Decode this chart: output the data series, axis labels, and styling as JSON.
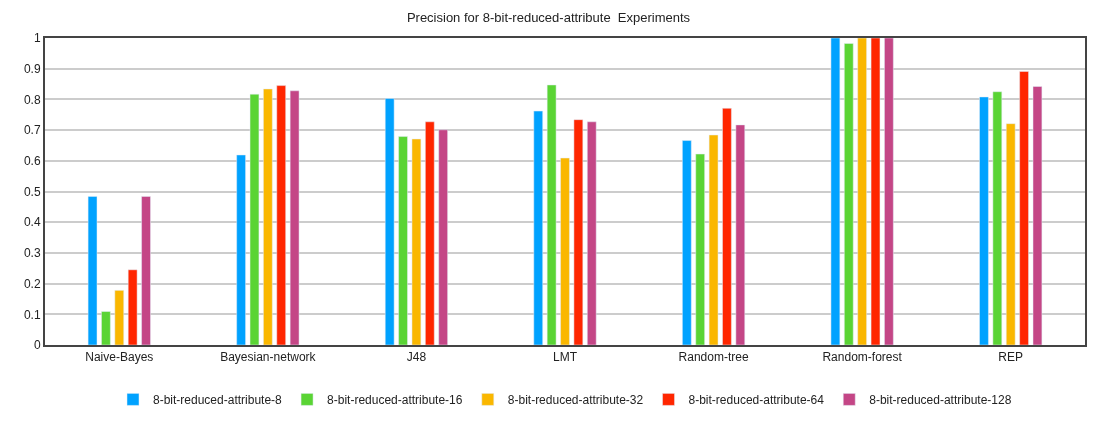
{
  "chart_data": {
    "type": "bar",
    "title": "Precision for 8-bit-reduced-attribute  Experiments",
    "categories": [
      "Naive-Bayes",
      "Bayesian-network",
      "J48",
      "LMT",
      "Random-tree",
      "Random-forest",
      "REP"
    ],
    "series": [
      {
        "name": "8-bit-reduced-attribute-8",
        "color": "#00a2ff",
        "values": [
          0.484,
          0.619,
          0.803,
          0.762,
          0.666,
          1.0,
          0.808
        ]
      },
      {
        "name": "8-bit-reduced-attribute-16",
        "color": "#5ad434",
        "values": [
          0.109,
          0.817,
          0.679,
          0.847,
          0.622,
          0.982,
          0.825
        ]
      },
      {
        "name": "8-bit-reduced-attribute-32",
        "color": "#fab700",
        "values": [
          0.178,
          0.834,
          0.671,
          0.609,
          0.684,
          1.0,
          0.721
        ]
      },
      {
        "name": "8-bit-reduced-attribute-64",
        "color": "#ff2600",
        "values": [
          0.245,
          0.845,
          0.727,
          0.734,
          0.771,
          1.0,
          0.891
        ]
      },
      {
        "name": "8-bit-reduced-attribute-128",
        "color": "#c44686",
        "values": [
          0.484,
          0.828,
          0.701,
          0.727,
          0.717,
          1.0,
          0.842
        ]
      }
    ],
    "ylim": [
      0,
      1
    ],
    "yticks": [
      0,
      0.1,
      0.2,
      0.3,
      0.4,
      0.5,
      0.6,
      0.7,
      0.8,
      0.9,
      1
    ],
    "grid": "y",
    "legend": "bottom"
  }
}
